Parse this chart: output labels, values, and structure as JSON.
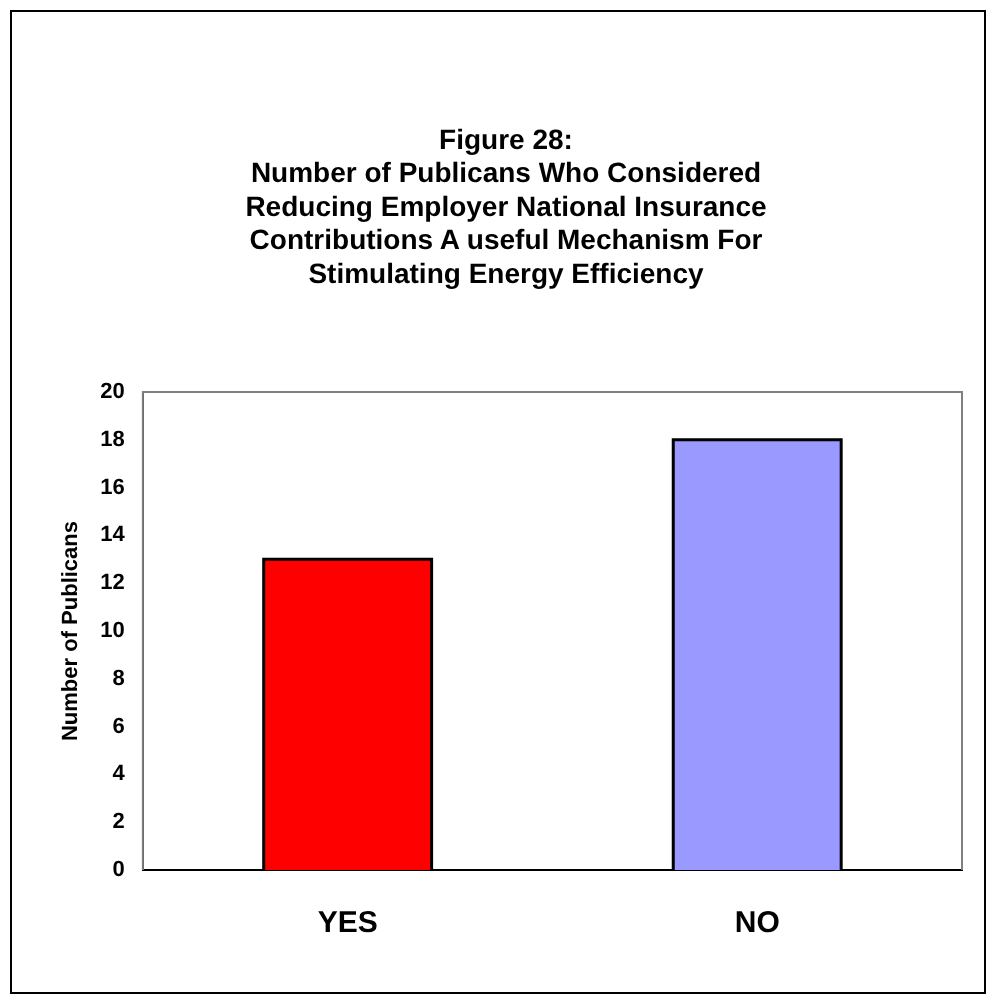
{
  "chart_data": {
    "type": "bar",
    "title": "Figure 28:\nNumber of Publicans Who Considered\nReducing Employer National Insurance\nContributions A useful Mechanism For\nStimulating Energy Efficiency",
    "ylabel": "Number of Publicans",
    "categories": [
      "YES",
      "NO"
    ],
    "values": [
      13,
      18
    ],
    "colors": [
      "#ff0000",
      "#9999ff"
    ],
    "ylim": [
      0,
      20
    ],
    "yticks": [
      0,
      2,
      4,
      6,
      8,
      10,
      12,
      14,
      16,
      18,
      20
    ],
    "grid": false,
    "legend": false
  }
}
